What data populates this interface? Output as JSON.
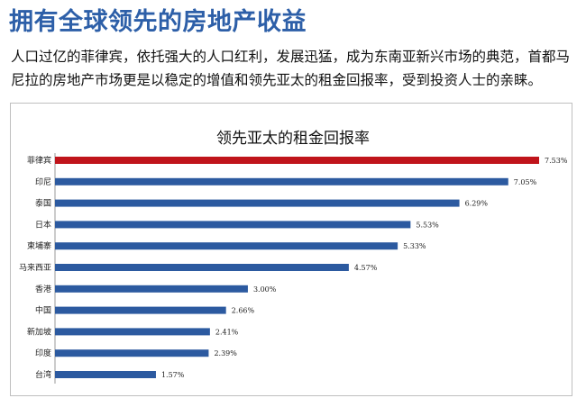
{
  "header": {
    "title": "拥有全球领先的房地产收益",
    "intro": "人口过亿的菲律宾，依托强大的人口红利，发展迅猛，成为东南亚新兴市场的典范，首都马尼拉的房地产市场更是以稳定的增值和领先亚太的租金回报率，受到投资人士的亲睐。"
  },
  "chart_data": {
    "type": "bar",
    "orientation": "horizontal",
    "title": "领先亚太的租金回报率",
    "categories": [
      "菲律宾",
      "印尼",
      "泰国",
      "日本",
      "柬埔寨",
      "马来西亚",
      "香港",
      "中国",
      "新加坡",
      "印度",
      "台湾"
    ],
    "values": [
      7.53,
      7.05,
      6.29,
      5.53,
      5.33,
      4.57,
      3.0,
      2.66,
      2.41,
      2.39,
      1.57
    ],
    "value_labels": [
      "7.53%",
      "7.05%",
      "6.29%",
      "5.53%",
      "5.33%",
      "4.57%",
      "3.00%",
      "2.66%",
      "2.41%",
      "2.39%",
      "1.57%"
    ],
    "highlight_index": 0,
    "colors": {
      "bar": "#2c5aa0",
      "highlight": "#c0141b"
    },
    "xlim": [
      0,
      7.53
    ],
    "grid": false,
    "legend": "none"
  }
}
